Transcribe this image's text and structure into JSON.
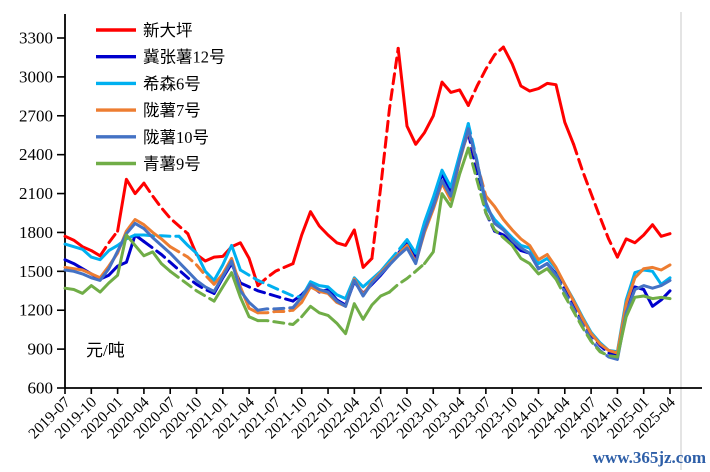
{
  "watermark": {
    "text": "www.365jz.com",
    "color": "#2E5FA8"
  },
  "chart_data": {
    "type": "line",
    "title": "",
    "unit_label": "元/吨",
    "x_start": "2019-07",
    "x_interval": "monthly",
    "x_tick_labels": [
      "2019-07",
      "2019-10",
      "2020-01",
      "2020-04",
      "2020-07",
      "2020-10",
      "2021-01",
      "2021-04",
      "2021-07",
      "2021-10",
      "2022-01",
      "2022-04",
      "2022-07",
      "2022-10",
      "2023-01",
      "2023-04",
      "2023-07",
      "2023-10",
      "2024-01",
      "2024-04",
      "2024-07",
      "2024-10",
      "2025-01",
      "2025-04"
    ],
    "ylim": [
      600,
      3300
    ],
    "y_ticks": [
      600,
      900,
      1200,
      1500,
      1800,
      2100,
      2400,
      2700,
      3000,
      3300
    ],
    "grid": false,
    "legend_position": "top-left",
    "series": [
      {
        "name": "新大坪",
        "color": "#FF0000",
        "values": [
          1770,
          1740,
          1690,
          1660,
          1620,
          1720,
          1810,
          2210,
          2100,
          2180,
          2080,
          1990,
          1910,
          1850,
          1790,
          1630,
          1580,
          1610,
          1615,
          1690,
          1720,
          1600,
          1390,
          1450,
          1500,
          1530,
          1560,
          1780,
          1960,
          1850,
          1780,
          1720,
          1700,
          1820,
          1530,
          1600,
          2150,
          2750,
          3220,
          2620,
          2480,
          2570,
          2700,
          2960,
          2880,
          2900,
          2780,
          2930,
          3060,
          3170,
          3230,
          3100,
          2930,
          2890,
          2910,
          2950,
          2940,
          2650,
          2480,
          2280,
          2100,
          1920,
          1750,
          1610,
          1750,
          1720,
          1780,
          1860,
          1770,
          1790
        ],
        "dash_ranges": [
          [
            4,
            6
          ],
          [
            9,
            14
          ],
          [
            22,
            26
          ],
          [
            35,
            38
          ],
          [
            46,
            50
          ],
          [
            58,
            63
          ]
        ]
      },
      {
        "name": "冀张薯12号",
        "color": "#0000CD",
        "values": [
          1590,
          1560,
          1520,
          1480,
          1440,
          1470,
          1540,
          1570,
          1780,
          1730,
          1680,
          1630,
          1570,
          1510,
          1450,
          1400,
          1360,
          1330,
          1450,
          1560,
          1410,
          1380,
          1350,
          1330,
          1310,
          1290,
          1270,
          1320,
          1390,
          1340,
          1360,
          1280,
          1240,
          1420,
          1330,
          1400,
          1470,
          1550,
          1640,
          1720,
          1600,
          1850,
          2050,
          2250,
          2120,
          2380,
          2570,
          2250,
          1950,
          1810,
          1780,
          1720,
          1660,
          1640,
          1520,
          1560,
          1480,
          1360,
          1240,
          1120,
          1010,
          930,
          870,
          850,
          1200,
          1380,
          1360,
          1230,
          1280,
          1350
        ],
        "dash_ranges": [
          [
            9,
            17
          ],
          [
            20,
            26
          ],
          [
            37,
            39
          ],
          [
            46,
            49
          ],
          [
            56,
            63
          ]
        ]
      },
      {
        "name": "希森6号",
        "color": "#00B0F0",
        "values": [
          1710,
          1690,
          1670,
          1610,
          1590,
          1660,
          1700,
          1750,
          1780,
          1780,
          1775,
          1775,
          1770,
          1770,
          1700,
          1640,
          1500,
          1430,
          1550,
          1700,
          1510,
          1470,
          1430,
          1400,
          1370,
          1340,
          1310,
          1300,
          1420,
          1390,
          1380,
          1320,
          1290,
          1450,
          1380,
          1440,
          1500,
          1580,
          1660,
          1745,
          1640,
          1880,
          2070,
          2280,
          2150,
          2400,
          2640,
          2350,
          2000,
          1900,
          1830,
          1760,
          1700,
          1680,
          1560,
          1600,
          1520,
          1400,
          1280,
          1150,
          1030,
          950,
          890,
          880,
          1280,
          1490,
          1510,
          1500,
          1400,
          1450
        ],
        "dash_ranges": [
          [
            9,
            13
          ],
          [
            20,
            27
          ],
          [
            37,
            39
          ],
          [
            46,
            48
          ]
        ]
      },
      {
        "name": "陇薯7号",
        "color": "#ED7D31",
        "values": [
          1530,
          1520,
          1510,
          1480,
          1450,
          1540,
          1640,
          1810,
          1900,
          1860,
          1800,
          1750,
          1690,
          1650,
          1610,
          1550,
          1470,
          1400,
          1480,
          1600,
          1380,
          1215,
          1180,
          1180,
          1190,
          1190,
          1200,
          1260,
          1380,
          1345,
          1330,
          1260,
          1230,
          1440,
          1320,
          1420,
          1490,
          1560,
          1630,
          1700,
          1570,
          1800,
          1980,
          2180,
          2050,
          2350,
          2590,
          2330,
          2080,
          2000,
          1900,
          1820,
          1750,
          1700,
          1590,
          1630,
          1530,
          1400,
          1270,
          1140,
          1020,
          940,
          890,
          870,
          1250,
          1450,
          1520,
          1530,
          1510,
          1550
        ],
        "dash_ranges": [
          [
            12,
            17
          ],
          [
            22,
            26
          ],
          [
            46,
            48
          ]
        ]
      },
      {
        "name": "陇薯10号",
        "color": "#4472C4",
        "values": [
          1510,
          1500,
          1480,
          1450,
          1430,
          1520,
          1655,
          1790,
          1870,
          1830,
          1760,
          1700,
          1640,
          1570,
          1500,
          1430,
          1380,
          1345,
          1460,
          1580,
          1350,
          1260,
          1200,
          1210,
          1210,
          1215,
          1220,
          1300,
          1400,
          1360,
          1340,
          1270,
          1230,
          1430,
          1310,
          1410,
          1480,
          1550,
          1620,
          1680,
          1560,
          1820,
          2000,
          2200,
          2080,
          2360,
          2600,
          2340,
          2030,
          1870,
          1820,
          1740,
          1680,
          1640,
          1520,
          1560,
          1470,
          1340,
          1210,
          1090,
          970,
          890,
          840,
          820,
          1180,
          1360,
          1390,
          1370,
          1390,
          1430
        ],
        "dash_ranges": [
          [
            22,
            26
          ],
          [
            56,
            63
          ]
        ]
      },
      {
        "name": "青薯9号",
        "color": "#70AD47",
        "values": [
          1370,
          1360,
          1330,
          1390,
          1340,
          1410,
          1470,
          1780,
          1700,
          1620,
          1650,
          1560,
          1500,
          1450,
          1400,
          1350,
          1310,
          1270,
          1380,
          1490,
          1300,
          1150,
          1120,
          1120,
          1110,
          1100,
          1090,
          1150,
          1230,
          1180,
          1160,
          1100,
          1020,
          1250,
          1130,
          1240,
          1310,
          1340,
          1400,
          1445,
          1500,
          1560,
          1650,
          2100,
          2000,
          2250,
          2450,
          2200,
          1950,
          1820,
          1760,
          1700,
          1600,
          1560,
          1480,
          1520,
          1440,
          1310,
          1190,
          1070,
          960,
          880,
          850,
          840,
          1150,
          1300,
          1310,
          1290,
          1300,
          1290
        ],
        "dash_ranges": [
          [
            12,
            17
          ],
          [
            22,
            27
          ],
          [
            37,
            41
          ],
          [
            46,
            50
          ],
          [
            56,
            63
          ]
        ]
      }
    ]
  }
}
